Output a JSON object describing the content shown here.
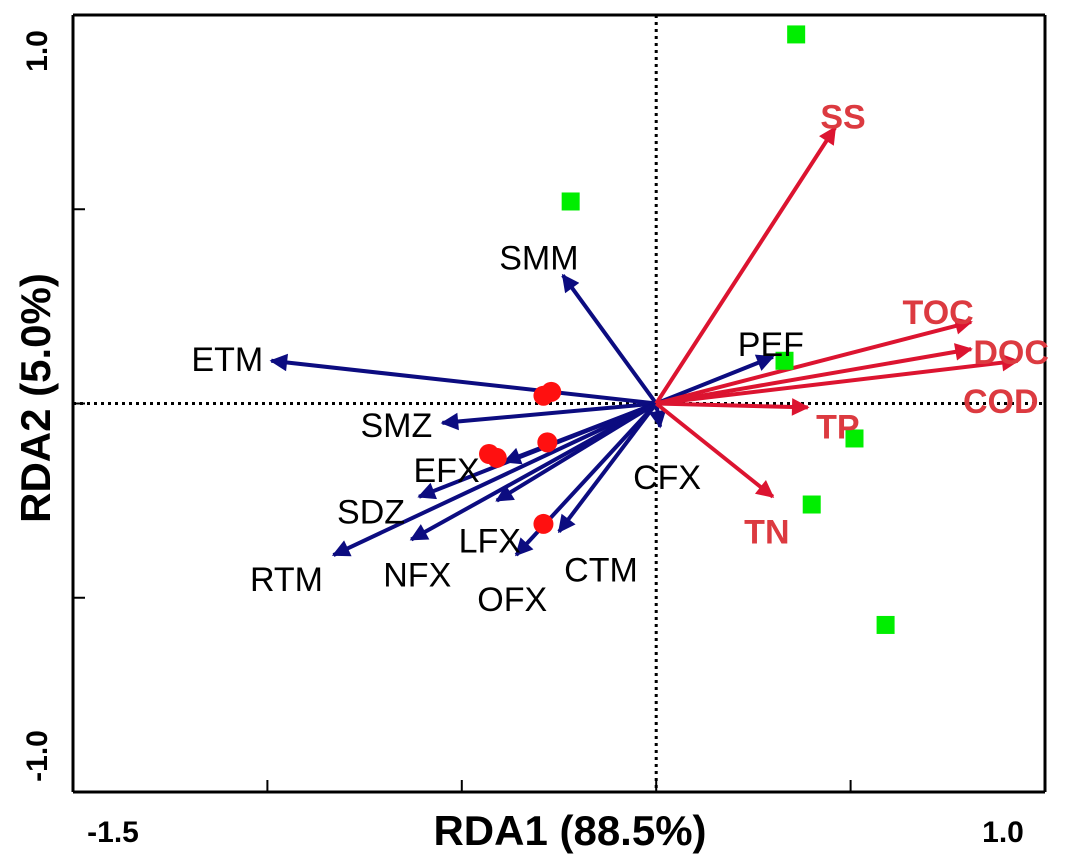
{
  "chart_data": {
    "type": "scatter",
    "subtype": "rda-biplot",
    "title": "",
    "xlabel": "RDA1 (88.5%)",
    "ylabel": "RDA2 (5.0%)",
    "xlim": [
      -1.5,
      1.0
    ],
    "ylim": [
      -1.0,
      1.0
    ],
    "x_ticks": [
      -1.5,
      -1.0,
      -0.5,
      0.0,
      0.5,
      1.0
    ],
    "y_ticks": [
      -1.0,
      -0.5,
      0.0,
      0.5,
      1.0
    ],
    "x_tick_labels": [
      {
        "value": -1.5,
        "label": "-1.5"
      },
      {
        "value": 1.0,
        "label": "1.0"
      }
    ],
    "y_tick_labels": [
      {
        "value": 1.0,
        "label": "1.0"
      },
      {
        "value": -1.0,
        "label": "-1.0"
      }
    ],
    "reference_lines": {
      "x": 0,
      "y": 0,
      "style": "dotted"
    },
    "grid": false,
    "colors": {
      "species_arrow": "#0c0c80",
      "species_label": "#000000",
      "env_arrow": "#dc1430",
      "env_label": "#dc3a40",
      "site_square": "#00ee00",
      "site_circle": "#ff1010",
      "axis": "#000000"
    },
    "species_arrows": [
      {
        "name": "SMM",
        "x": -0.24,
        "y": 0.33
      },
      {
        "name": "ETM",
        "x": -0.99,
        "y": 0.11
      },
      {
        "name": "SMZ",
        "x": -0.55,
        "y": -0.05
      },
      {
        "name": "EFX",
        "x": -0.39,
        "y": -0.15
      },
      {
        "name": "SDZ",
        "x": -0.61,
        "y": -0.24
      },
      {
        "name": "RTM",
        "x": -0.83,
        "y": -0.39
      },
      {
        "name": "NFX",
        "x": -0.63,
        "y": -0.35
      },
      {
        "name": "LFX",
        "x": -0.41,
        "y": -0.25
      },
      {
        "name": "OFX",
        "x": -0.36,
        "y": -0.39
      },
      {
        "name": "CTM",
        "x": -0.25,
        "y": -0.33
      },
      {
        "name": "CFX",
        "x": 0.01,
        "y": -0.06
      },
      {
        "name": "PEF",
        "x": 0.3,
        "y": 0.12
      }
    ],
    "environment_arrows": [
      {
        "name": "SS",
        "x": 0.46,
        "y": 0.71
      },
      {
        "name": "TOC",
        "x": 0.81,
        "y": 0.21
      },
      {
        "name": "DOC",
        "x": 0.81,
        "y": 0.14
      },
      {
        "name": "COD",
        "x": 0.93,
        "y": 0.11
      },
      {
        "name": "TP",
        "x": 0.39,
        "y": -0.01
      },
      {
        "name": "TN",
        "x": 0.3,
        "y": -0.24
      }
    ],
    "site_points_green_squares": [
      {
        "x": 0.36,
        "y": 0.95
      },
      {
        "x": -0.22,
        "y": 0.52
      },
      {
        "x": 0.33,
        "y": 0.11
      },
      {
        "x": 0.51,
        "y": -0.09
      },
      {
        "x": 0.4,
        "y": -0.26
      },
      {
        "x": 0.59,
        "y": -0.57
      }
    ],
    "site_points_red_circles": [
      {
        "x": -0.29,
        "y": 0.02
      },
      {
        "x": -0.27,
        "y": 0.03
      },
      {
        "x": -0.28,
        "y": -0.1
      },
      {
        "x": -0.43,
        "y": -0.13
      },
      {
        "x": -0.41,
        "y": -0.14
      },
      {
        "x": -0.29,
        "y": -0.31
      }
    ]
  }
}
